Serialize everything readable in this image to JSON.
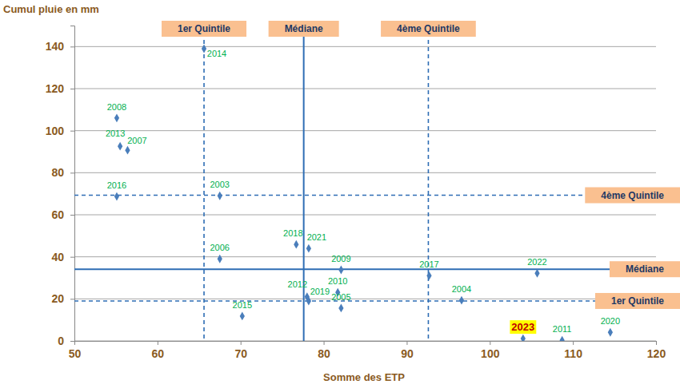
{
  "chart_data": {
    "type": "scatter",
    "x_label": "Somme des ETP",
    "y_label": "Cumul pluie en mm",
    "xlim": [
      50,
      120
    ],
    "xticks": [
      50,
      60,
      70,
      80,
      90,
      100,
      110,
      120
    ],
    "ylim": [
      0,
      150
    ],
    "yticks": [
      0,
      20,
      40,
      60,
      80,
      100,
      120,
      140
    ],
    "grid": true,
    "marker": "diamond",
    "color": "#4a7ebb",
    "x": [
      65.6,
      55.1,
      55.5,
      56.4,
      55.1,
      67.5,
      67.5,
      70.2,
      76.7,
      78.2,
      82.1,
      92.7,
      105.7,
      81.7,
      78.0,
      78.2,
      82.1,
      96.6,
      104.0,
      108.7,
      114.5
    ],
    "values": [
      139,
      106,
      92.6,
      90.7,
      68.7,
      69,
      39,
      11.8,
      45.9,
      44,
      33.8,
      31,
      32.2,
      23.1,
      21,
      19,
      15.6,
      19.3,
      1.1,
      0.3,
      4.1
    ],
    "point_labels": [
      "2014",
      "2008",
      "2013",
      "2007",
      "2016",
      "2003",
      "2006",
      "2015",
      "2018",
      "2021",
      "2009",
      "2017",
      "2022",
      "2010",
      "2012",
      "2019",
      "2005",
      "2004",
      "2023",
      "2011",
      "2020"
    ],
    "highlight": "2023",
    "reference_lines": [
      {
        "axis": "x",
        "value": 65.6,
        "label": "1er Quintile",
        "line_style": "dashed"
      },
      {
        "axis": "x",
        "value": 77.6,
        "label": "Médiane",
        "line_style": "solid"
      },
      {
        "axis": "x",
        "value": 92.6,
        "label": "4ème Quintile",
        "line_style": "dashed"
      },
      {
        "axis": "y",
        "value": 69.3,
        "label": "4ème Quintile",
        "line_style": "dashed"
      },
      {
        "axis": "y",
        "value": 34.1,
        "label": "Médiane",
        "line_style": "solid"
      },
      {
        "axis": "y",
        "value": 19.0,
        "label": "1er Quintile",
        "line_style": "dashed"
      }
    ]
  }
}
